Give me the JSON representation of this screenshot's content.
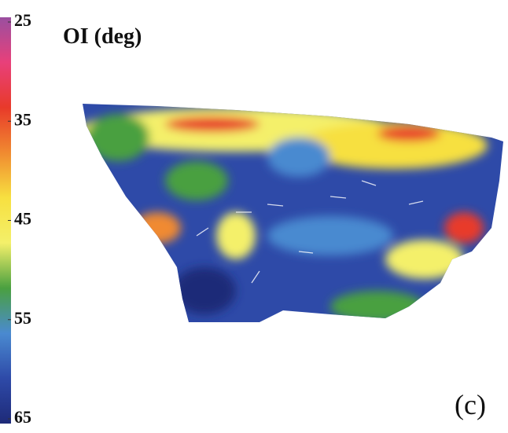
{
  "chart_data": {
    "type": "heatmap",
    "title": "OI (deg)",
    "panel_label": "(c)",
    "colorbar": {
      "lim": [
        25,
        65
      ],
      "ticks": [
        25,
        35,
        45,
        55,
        65
      ],
      "colors": [
        "#9a4fa0",
        "#e8407a",
        "#e83a2a",
        "#f08a30",
        "#f7e040",
        "#f4f06a",
        "#4aa040",
        "#4a8ad0",
        "#2e4aa8",
        "#1e2a78"
      ]
    }
  }
}
